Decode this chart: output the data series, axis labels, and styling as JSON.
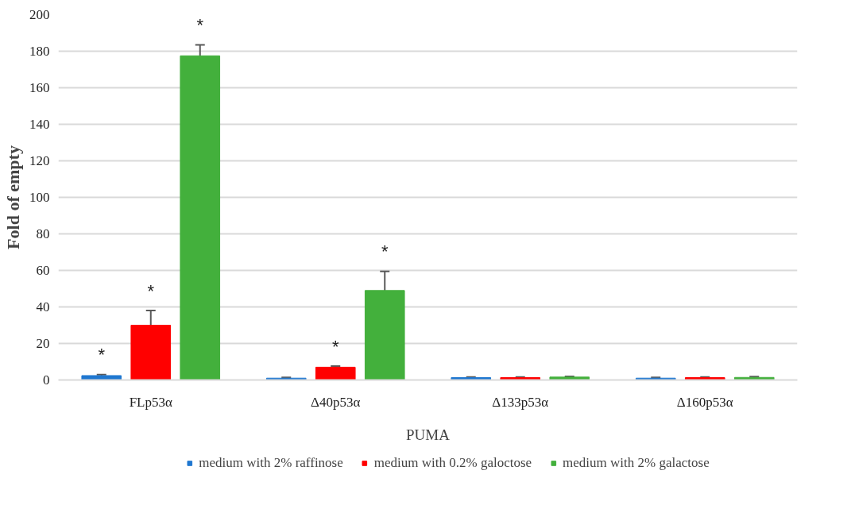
{
  "chart_data": {
    "type": "bar",
    "xlabel": "PUMA",
    "ylabel": "Fold of empty",
    "categories": [
      "FLp53α",
      "Δ40p53α",
      "Δ133p53α",
      "Δ160p53α"
    ],
    "series": [
      {
        "name": "medium with 2% raffinose",
        "color": "#1f77d0",
        "values": [
          2.4,
          1,
          1.3,
          1
        ],
        "errors": [
          0.5,
          0.4,
          0.3,
          0.4
        ],
        "value_labels": [
          "*",
          null,
          null,
          null
        ]
      },
      {
        "name": "medium with 0.2% galoctose",
        "color": "#ff0000",
        "values": [
          30,
          7,
          1.3,
          1.3
        ],
        "errors": [
          8,
          0.6,
          0.3,
          0.3
        ],
        "value_labels": [
          "*",
          "*",
          null,
          null
        ]
      },
      {
        "name": "medium with 2% galactose",
        "color": "#43b03c",
        "values": [
          177.5,
          49,
          1.6,
          1.4
        ],
        "errors": [
          6,
          10.5,
          0.4,
          0.5
        ],
        "value_labels": [
          "*",
          "*",
          null,
          null
        ]
      }
    ],
    "ylim": [
      0,
      200
    ],
    "yticks": [
      0,
      20,
      40,
      60,
      80,
      100,
      120,
      140,
      160,
      180,
      200
    ],
    "grid": "y",
    "legend": "bottom"
  }
}
